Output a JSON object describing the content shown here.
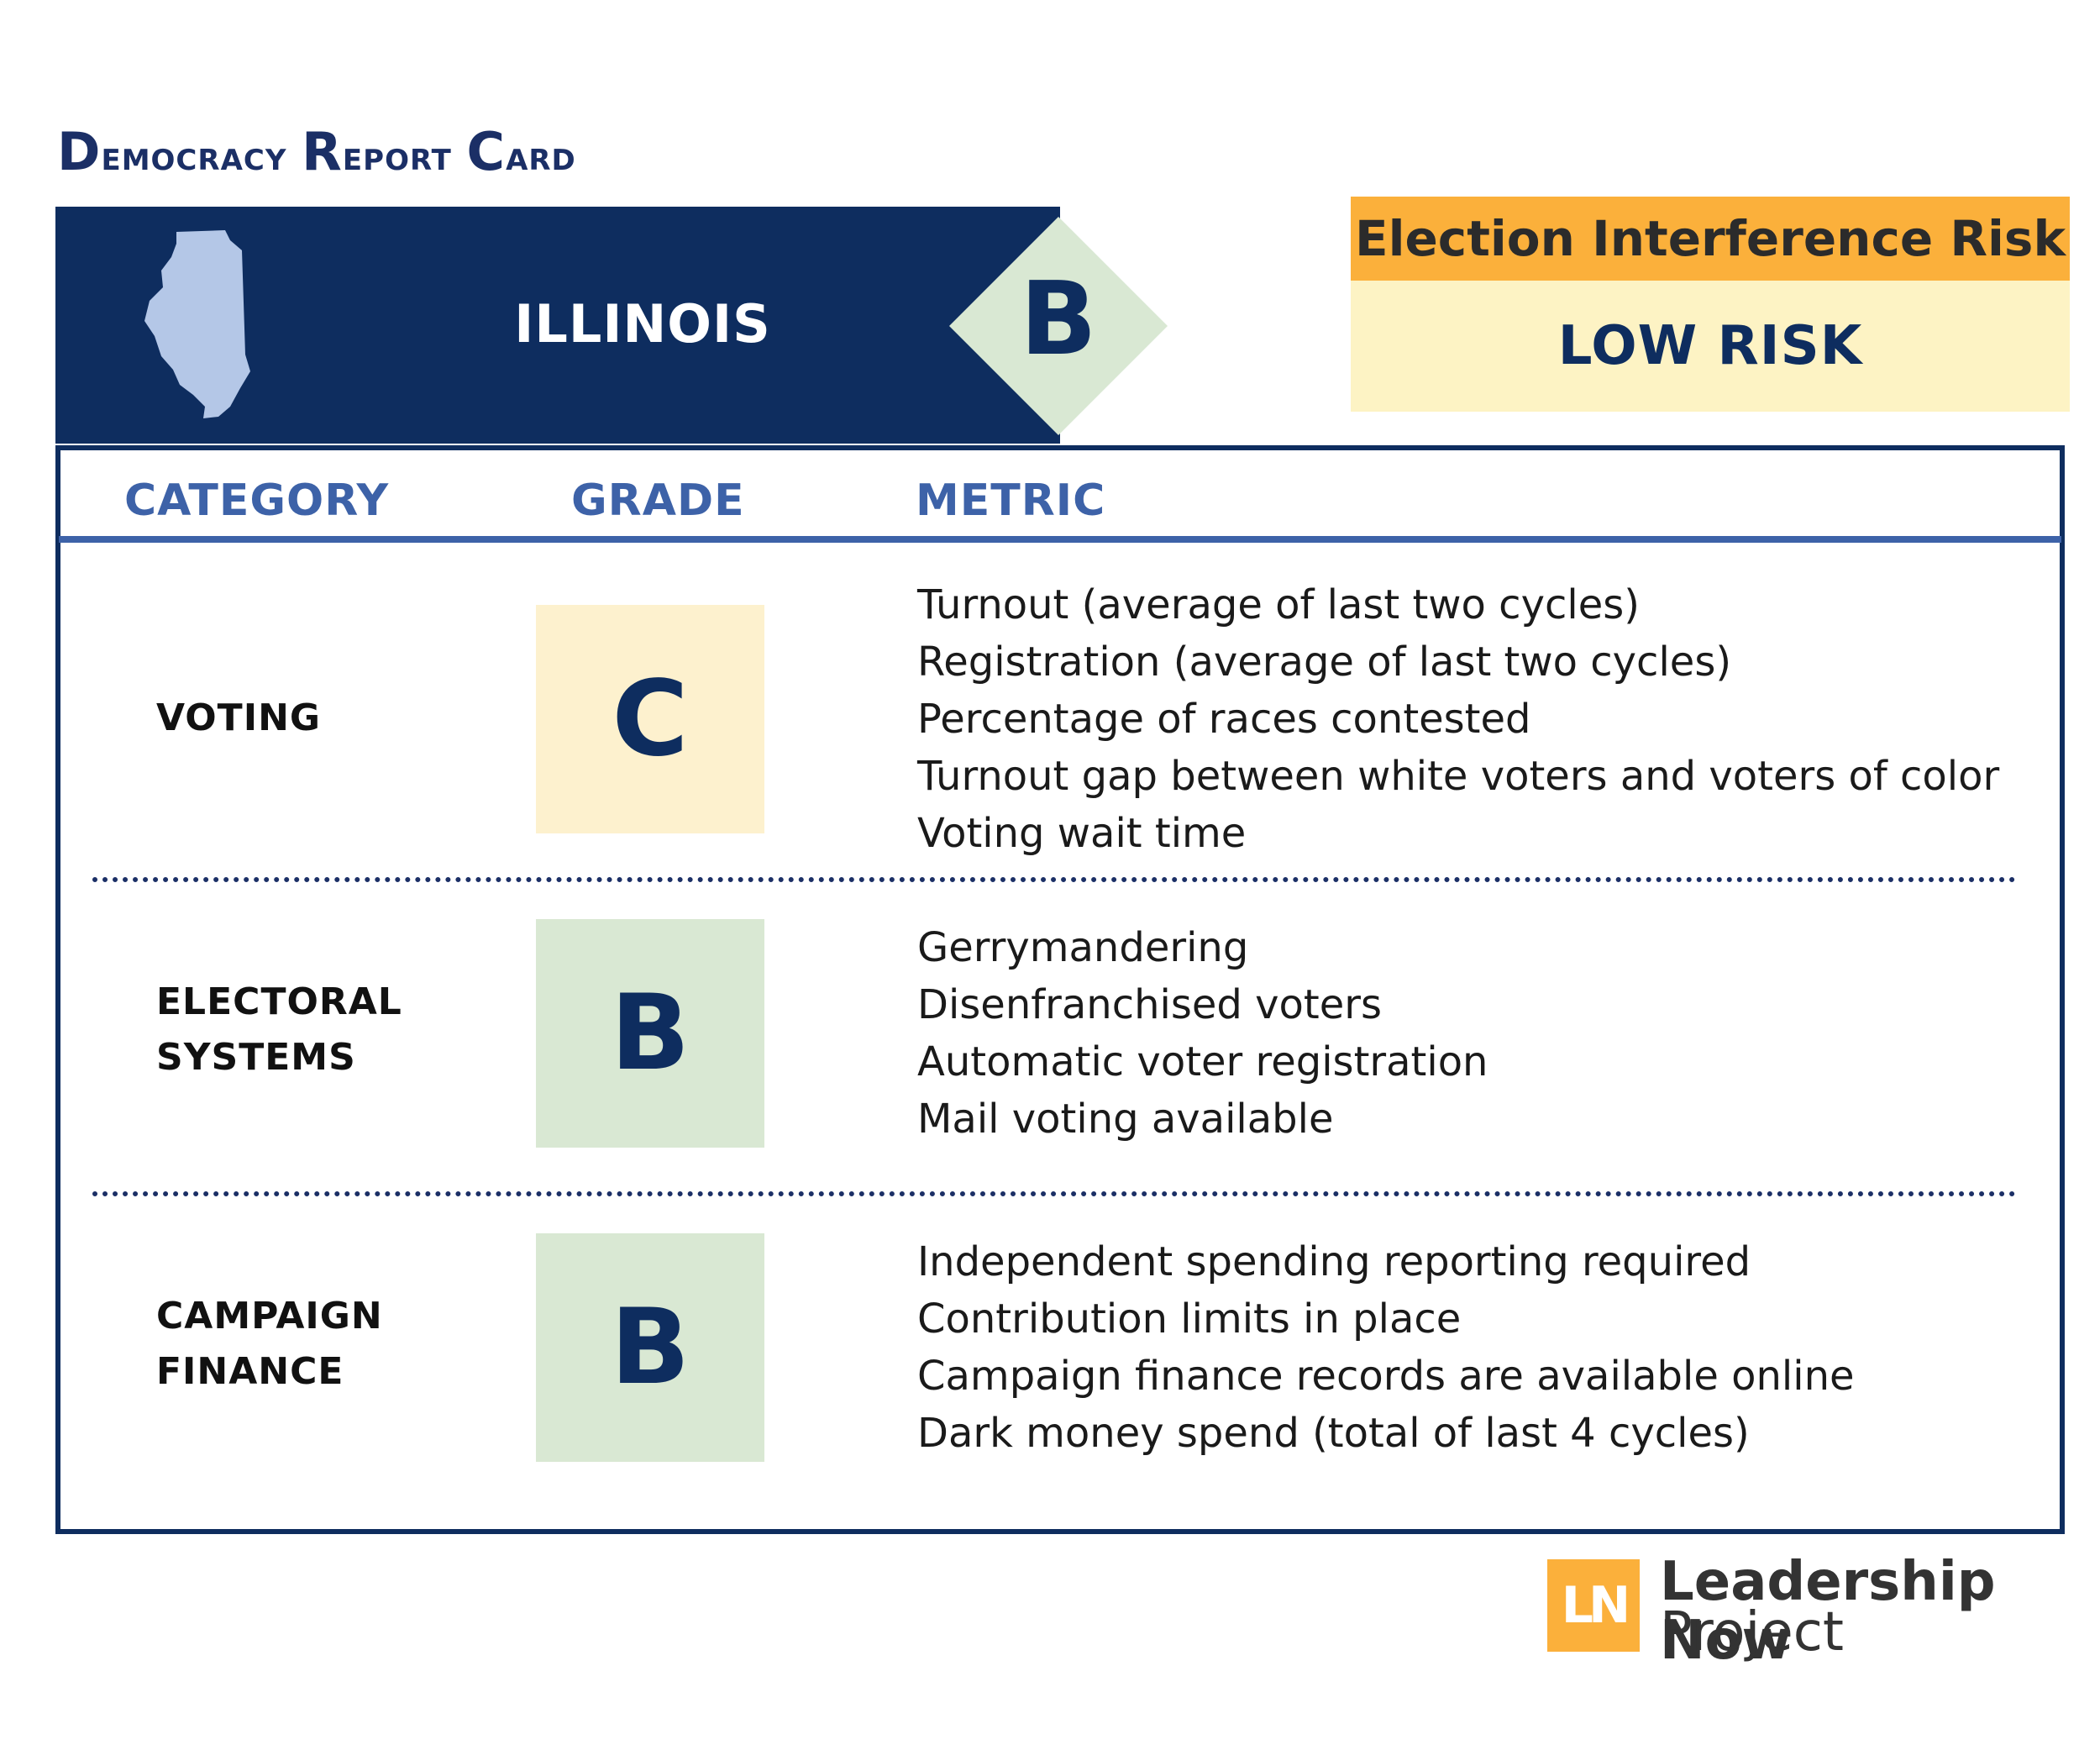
{
  "title": {
    "first_initial": "D",
    "first_rest": "emocracy",
    "second_initial": "R",
    "second_rest": "eport",
    "third_initial": "C",
    "third_rest": "ard"
  },
  "banner": {
    "state": "ILLINOIS",
    "overall_grade": "B",
    "state_icon": "illinois-map-icon"
  },
  "risk": {
    "header": "Election Interference Risk",
    "level": "LOW RISK"
  },
  "table": {
    "headers": {
      "category": "CATEGORY",
      "grade": "GRADE",
      "metric": "METRIC"
    },
    "rows": [
      {
        "category": [
          "VOTING"
        ],
        "grade": "C",
        "metrics": [
          "Turnout (average of last two cycles)",
          "Registration (average of last two cycles)",
          "Percentage of races contested",
          "Turnout gap between white voters and voters of color",
          "Voting wait time"
        ]
      },
      {
        "category": [
          "ELECTORAL",
          "SYSTEMS"
        ],
        "grade": "B",
        "metrics": [
          "Gerrymandering",
          "Disenfranchised voters",
          "Automatic voter registration",
          "Mail voting available"
        ]
      },
      {
        "category": [
          "CAMPAIGN",
          "FINANCE"
        ],
        "grade": "B",
        "metrics": [
          "Independent spending reporting required",
          "Contribution limits in place",
          "Campaign finance records are available online",
          "Dark money spend (total of last 4 cycles)"
        ]
      }
    ]
  },
  "logo": {
    "mark": "LN",
    "line1": "Leadership Now",
    "line2": "Project"
  },
  "colors": {
    "navy": "#0e2d5f",
    "header_blue": "#3d62a8",
    "orange": "#fbb03b",
    "risk_bg": "#fdf3c4",
    "grade_c_bg": "#fdf1ce",
    "grade_b_bg": "#d9e8d3",
    "state_fill": "#b4c7e7"
  }
}
